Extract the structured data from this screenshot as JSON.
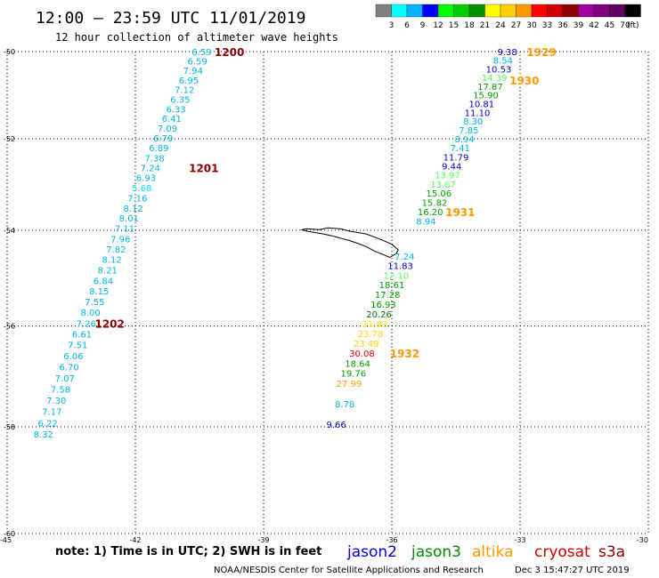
{
  "header": {
    "title": "12:00 — 23:59 UTC 11/01/2019",
    "subtitle": "12 hour collection of altimeter wave heights"
  },
  "colorbar": {
    "unit": "(ft)",
    "colors": [
      "#808080",
      "#00ffff",
      "#00b4ff",
      "#0000ff",
      "#00ff00",
      "#00d000",
      "#009000",
      "#ffff00",
      "#ffd000",
      "#ff9900",
      "#ff0000",
      "#d00000",
      "#900000",
      "#a000a0",
      "#800080",
      "#600060",
      "#000000"
    ],
    "labels": [
      "3",
      "6",
      "9",
      "12",
      "15",
      "18",
      "21",
      "24",
      "27",
      "30",
      "33",
      "36",
      "39",
      "42",
      "45",
      "70"
    ]
  },
  "map_area": {
    "lon_range": [
      -45,
      -30
    ],
    "lat_range": [
      -60,
      -50
    ]
  },
  "axes": {
    "lat_ticks": [
      "-50",
      "-52",
      "-54",
      "-56",
      "-58",
      "-60"
    ],
    "lon_ticks": [
      "-45",
      "-42",
      "-39",
      "-36",
      "-33",
      "-30"
    ]
  },
  "colors": {
    "jason2": "#0000cc",
    "jason3": "#008800",
    "altika": "#ff9900",
    "cryosat": "#cc0000",
    "s3a": "#880000"
  },
  "tracks": [
    {
      "labels": [
        {
          "v": "6.59",
          "c": "#00b4e6",
          "lon": -40.45,
          "lat": -50.0
        },
        {
          "v": "6.59",
          "c": "#00b4e6",
          "lon": -40.55,
          "lat": -50.22
        },
        {
          "v": "7.94",
          "c": "#00b4e6",
          "lon": -40.65,
          "lat": -50.44
        },
        {
          "v": "6.95",
          "c": "#00b4e6",
          "lon": -40.75,
          "lat": -50.66
        },
        {
          "v": "7.12",
          "c": "#00b4e6",
          "lon": -40.85,
          "lat": -50.88
        },
        {
          "v": "6.35",
          "c": "#00b4e6",
          "lon": -40.95,
          "lat": -51.1
        },
        {
          "v": "6.33",
          "c": "#00b4e6",
          "lon": -41.05,
          "lat": -51.32
        },
        {
          "v": "6.41",
          "c": "#00b4e6",
          "lon": -41.15,
          "lat": -51.54
        },
        {
          "v": "7.09",
          "c": "#00b4e6",
          "lon": -41.25,
          "lat": -51.76
        },
        {
          "v": "6.79",
          "c": "#00b4e6",
          "lon": -41.35,
          "lat": -51.98
        },
        {
          "v": "6.89",
          "c": "#00b4e6",
          "lon": -41.45,
          "lat": -52.2
        },
        {
          "v": "7.38",
          "c": "#00b4e6",
          "lon": -41.55,
          "lat": -52.42
        },
        {
          "v": "7.24",
          "c": "#00b4e6",
          "lon": -41.65,
          "lat": -52.64
        },
        {
          "v": "6.93",
          "c": "#00b4e6",
          "lon": -41.75,
          "lat": -52.86
        },
        {
          "v": "5.68",
          "c": "#00e0ff",
          "lon": -41.85,
          "lat": -53.08
        },
        {
          "v": "7.16",
          "c": "#00b4e6",
          "lon": -41.95,
          "lat": -53.3
        },
        {
          "v": "8.12",
          "c": "#00b4e6",
          "lon": -42.05,
          "lat": -53.52
        },
        {
          "v": "8.01",
          "c": "#00b4e6",
          "lon": -42.15,
          "lat": -53.74
        },
        {
          "v": "7.11",
          "c": "#00b4e6",
          "lon": -42.25,
          "lat": -53.96
        },
        {
          "v": "7.96",
          "c": "#00b4e6",
          "lon": -42.35,
          "lat": -54.18
        },
        {
          "v": "7.82",
          "c": "#00b4e6",
          "lon": -42.45,
          "lat": -54.4
        },
        {
          "v": "8.12",
          "c": "#00b4e6",
          "lon": -42.55,
          "lat": -54.62
        },
        {
          "v": "8.21",
          "c": "#00b4e6",
          "lon": -42.65,
          "lat": -54.84
        },
        {
          "v": "6.84",
          "c": "#00b4e6",
          "lon": -42.75,
          "lat": -55.06
        },
        {
          "v": "8.15",
          "c": "#00b4e6",
          "lon": -42.85,
          "lat": -55.28
        },
        {
          "v": "7.55",
          "c": "#00b4e6",
          "lon": -42.95,
          "lat": -55.5
        },
        {
          "v": "8.00",
          "c": "#00b4e6",
          "lon": -43.05,
          "lat": -55.72
        },
        {
          "v": "7.26",
          "c": "#00b4e6",
          "lon": -43.15,
          "lat": -55.94
        },
        {
          "v": "6.61",
          "c": "#00b4e6",
          "lon": -43.25,
          "lat": -56.16
        },
        {
          "v": "7.51",
          "c": "#00b4e6",
          "lon": -43.35,
          "lat": -56.38
        },
        {
          "v": "6.06",
          "c": "#00b4e6",
          "lon": -43.45,
          "lat": -56.6
        },
        {
          "v": "6.70",
          "c": "#00b4e6",
          "lon": -43.55,
          "lat": -56.82
        },
        {
          "v": "7.07",
          "c": "#00b4e6",
          "lon": -43.65,
          "lat": -57.04
        },
        {
          "v": "7.58",
          "c": "#00b4e6",
          "lon": -43.75,
          "lat": -57.26
        },
        {
          "v": "7.30",
          "c": "#00b4e6",
          "lon": -43.85,
          "lat": -57.48
        },
        {
          "v": "7.17",
          "c": "#00b4e6",
          "lon": -43.95,
          "lat": -57.7
        },
        {
          "v": "6.22",
          "c": "#00b4e6",
          "lon": -44.05,
          "lat": -57.92
        },
        {
          "v": "8.32",
          "c": "#00b4e6",
          "lon": -44.15,
          "lat": -58.14
        }
      ],
      "times": [
        {
          "v": "1200",
          "c": "#880000",
          "lon": -39.8,
          "lat": -50.0
        },
        {
          "v": "1201",
          "c": "#880000",
          "lon": -40.4,
          "lat": -52.64
        },
        {
          "v": "1202",
          "c": "#880000",
          "lon": -42.6,
          "lat": -55.94
        }
      ]
    },
    {
      "labels": [
        {
          "v": "9.38",
          "c": "#0000cc",
          "lon": -33.3,
          "lat": -50.0
        },
        {
          "v": "8.54",
          "c": "#00b4e6",
          "lon": -33.4,
          "lat": -50.2
        },
        {
          "v": "10.53",
          "c": "#0000cc",
          "lon": -33.5,
          "lat": -50.4
        },
        {
          "v": "14.39",
          "c": "#55ff55",
          "lon": -33.6,
          "lat": -50.6
        },
        {
          "v": "17.87",
          "c": "#00a000",
          "lon": -33.7,
          "lat": -50.8
        },
        {
          "v": "15.90",
          "c": "#00a000",
          "lon": -33.8,
          "lat": -51.0
        },
        {
          "v": "10.81",
          "c": "#0000cc",
          "lon": -33.9,
          "lat": -51.2
        },
        {
          "v": "11.10",
          "c": "#0000cc",
          "lon": -34.0,
          "lat": -51.4
        },
        {
          "v": "8.30",
          "c": "#00b4e6",
          "lon": -34.1,
          "lat": -51.6
        },
        {
          "v": "7.85",
          "c": "#00b4e6",
          "lon": -34.2,
          "lat": -51.8
        },
        {
          "v": "8.94",
          "c": "#00b4e6",
          "lon": -34.3,
          "lat": -52.0
        },
        {
          "v": "7.41",
          "c": "#00b4e6",
          "lon": -34.4,
          "lat": -52.2
        },
        {
          "v": "11.79",
          "c": "#0000cc",
          "lon": -34.5,
          "lat": -52.4
        },
        {
          "v": "9.44",
          "c": "#0000cc",
          "lon": -34.6,
          "lat": -52.6
        },
        {
          "v": "13.97",
          "c": "#55ff55",
          "lon": -34.7,
          "lat": -52.8
        },
        {
          "v": "13.67",
          "c": "#55ff55",
          "lon": -34.8,
          "lat": -53.0
        },
        {
          "v": "15.06",
          "c": "#00a000",
          "lon": -34.9,
          "lat": -53.2
        },
        {
          "v": "15.82",
          "c": "#00a000",
          "lon": -35.0,
          "lat": -53.4
        },
        {
          "v": "16.20",
          "c": "#00a000",
          "lon": -35.1,
          "lat": -53.6
        },
        {
          "v": "8.94",
          "c": "#00b4e6",
          "lon": -35.2,
          "lat": -53.8
        },
        {
          "v": "7.24",
          "c": "#00b4e6",
          "lon": -35.7,
          "lat": -54.55
        },
        {
          "v": "11.83",
          "c": "#0000cc",
          "lon": -35.8,
          "lat": -54.75
        },
        {
          "v": "12.10",
          "c": "#55ff55",
          "lon": -35.9,
          "lat": -54.95
        },
        {
          "v": "18.61",
          "c": "#00a000",
          "lon": -36.0,
          "lat": -55.15
        },
        {
          "v": "17.28",
          "c": "#00a000",
          "lon": -36.1,
          "lat": -55.35
        },
        {
          "v": "16.93",
          "c": "#00a000",
          "lon": -36.2,
          "lat": -55.55
        },
        {
          "v": "20.26",
          "c": "#007700",
          "lon": -36.3,
          "lat": -55.75
        },
        {
          "v": "21.83",
          "c": "#ffee00",
          "lon": -36.4,
          "lat": -55.95
        },
        {
          "v": "23.78",
          "c": "#ffd000",
          "lon": -36.5,
          "lat": -56.15
        },
        {
          "v": "23.49",
          "c": "#ffd000",
          "lon": -36.6,
          "lat": -56.35
        },
        {
          "v": "30.08",
          "c": "#ee0000",
          "lon": -36.7,
          "lat": -56.55
        },
        {
          "v": "18.64",
          "c": "#00a000",
          "lon": -36.8,
          "lat": -56.75
        },
        {
          "v": "19.76",
          "c": "#00a000",
          "lon": -36.9,
          "lat": -56.95
        },
        {
          "v": "27.99",
          "c": "#ff9900",
          "lon": -37.0,
          "lat": -57.15
        },
        {
          "v": "8.78",
          "c": "#00b4e6",
          "lon": -37.1,
          "lat": -57.55
        },
        {
          "v": "9.66",
          "c": "#0000cc",
          "lon": -37.3,
          "lat": -57.95
        }
      ],
      "times": [
        {
          "v": "1929",
          "c": "#ff9900",
          "lon": -32.5,
          "lat": -50.0
        },
        {
          "v": "1930",
          "c": "#ff9900",
          "lon": -32.9,
          "lat": -50.66
        },
        {
          "v": "1931",
          "c": "#ff9900",
          "lon": -34.4,
          "lat": -53.6
        },
        {
          "v": "1932",
          "c": "#ff9900",
          "lon": -35.7,
          "lat": -56.55
        }
      ]
    }
  ],
  "footer": {
    "note": "note: 1) Time is in UTC; 2) SWH is in feet",
    "legend": [
      {
        "name": "jason2",
        "color": "#0000cc"
      },
      {
        "name": "jason3",
        "color": "#008800"
      },
      {
        "name": "altika",
        "color": "#ff9900"
      },
      {
        "name": "cryosat",
        "color": "#cc0000"
      },
      {
        "name": "s3a",
        "color": "#880000"
      }
    ],
    "credit": "NOAA/NESDIS Center for Satellite Applications and Research",
    "timestamp": "Dec  3 15:47:27 UTC 2019"
  }
}
